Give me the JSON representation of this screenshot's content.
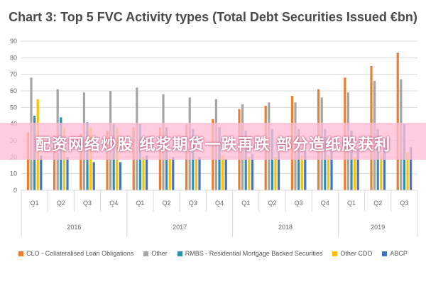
{
  "chart_data": {
    "type": "bar",
    "title": "Chart 3: Top 5 FVC Activity types (Total Debt Securities Issued €bn)",
    "xlabel": "",
    "ylabel": "",
    "ylim": [
      0,
      90
    ],
    "yticks": [
      0,
      10,
      20,
      30,
      40,
      50,
      60,
      70,
      80,
      90
    ],
    "grid": "horizontal",
    "legend_position": "bottom",
    "categories": [
      "Q1",
      "Q2",
      "Q3",
      "Q4",
      "Q1",
      "Q2",
      "Q3",
      "Q4",
      "Q1",
      "Q2",
      "Q3",
      "Q4",
      "Q1",
      "Q2",
      "Q3"
    ],
    "groups": [
      {
        "label": "2016",
        "count": 4
      },
      {
        "label": "2017",
        "count": 4
      },
      {
        "label": "2018",
        "count": 4
      },
      {
        "label": "2019",
        "count": 3
      }
    ],
    "series": [
      {
        "name": "CLO - Collateralised Loan Obligations",
        "color": "#ed7d31",
        "values": [
          35,
          33,
          34,
          36,
          38,
          38,
          40,
          43,
          49,
          51,
          57,
          61,
          68,
          75,
          83
        ]
      },
      {
        "name": "Other",
        "color": "#a5a5a5",
        "values": [
          68,
          61,
          59,
          60,
          62,
          58,
          56,
          55,
          52,
          53,
          53,
          56,
          59,
          66,
          67
        ]
      },
      {
        "name": "RMBS - Residential Mortgage Backed Securities",
        "color": "#2f8fb0",
        "values": [
          45,
          44,
          41,
          40,
          40,
          38,
          37,
          38,
          36,
          37,
          37,
          37,
          36,
          37,
          40
        ]
      },
      {
        "name": "Other CDO",
        "color": "#ffc000",
        "values": [
          55,
          38,
          38,
          38,
          20,
          19,
          19,
          21,
          20,
          20,
          21,
          21,
          20,
          22,
          23
        ]
      },
      {
        "name": "ABCP",
        "color": "#4472c4",
        "values": [
          21,
          20,
          17,
          17,
          21,
          20,
          20,
          19,
          22,
          23,
          24,
          24,
          25,
          26,
          26
        ]
      }
    ]
  },
  "overlay_banner": "配资网络炒股 纸浆期货一跌再跌 部分造纸股获利"
}
